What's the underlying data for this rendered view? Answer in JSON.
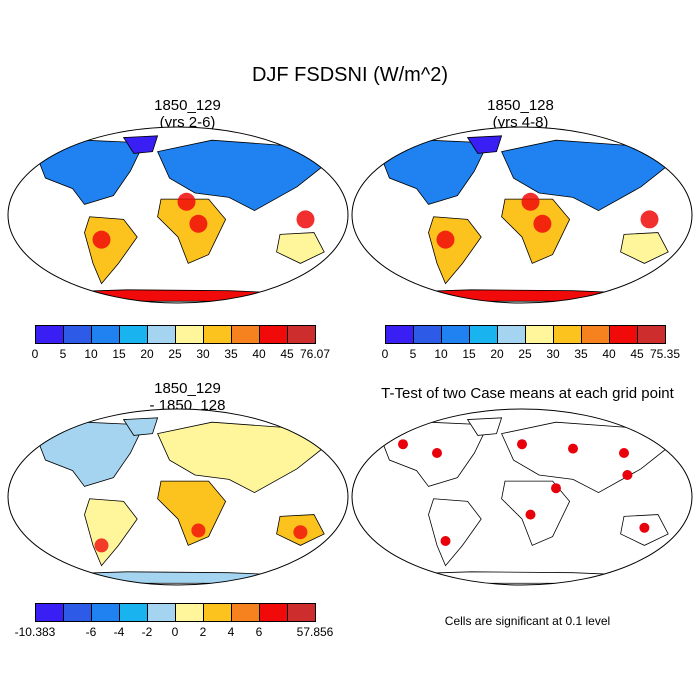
{
  "figure": {
    "title": "DJF FSDSNI (W/m^2)"
  },
  "panels": [
    {
      "id": "case1",
      "title_line1": "1850_129",
      "title_line2": "(yrs 2-6)"
    },
    {
      "id": "case2",
      "title_line1": "1850_128",
      "title_line2": "(yrs 4-8)"
    },
    {
      "id": "diff",
      "title_line1": "1850_129",
      "title_line2": "- 1850_128"
    },
    {
      "id": "ttest",
      "title_line1": "T-Test of two Case means at each grid point",
      "title_line2": ""
    }
  ],
  "colorbars": {
    "case1": {
      "labels": [
        "0",
        "5",
        "10",
        "15",
        "20",
        "25",
        "30",
        "35",
        "40",
        "45",
        "76.07"
      ],
      "colors": [
        "#3a1ff5",
        "#2d5ae6",
        "#1f82f0",
        "#19b4f0",
        "#a5d4f0",
        "#fff59b",
        "#fcc31e",
        "#f5821e",
        "#f00a0a",
        "#cd2d2d"
      ]
    },
    "case2": {
      "labels": [
        "0",
        "5",
        "10",
        "15",
        "20",
        "25",
        "30",
        "35",
        "40",
        "45",
        "75.35"
      ],
      "colors": [
        "#3a1ff5",
        "#2d5ae6",
        "#1f82f0",
        "#19b4f0",
        "#a5d4f0",
        "#fff59b",
        "#fcc31e",
        "#f5821e",
        "#f00a0a",
        "#cd2d2d"
      ]
    },
    "diff": {
      "labels": [
        "-10.383",
        "-6",
        "-4",
        "-2",
        "0",
        "2",
        "4",
        "6",
        "57.856"
      ],
      "label_slots": [
        0,
        2,
        3,
        4,
        5,
        6,
        7,
        8,
        10
      ],
      "colors": [
        "#3a1ff5",
        "#2d5ae6",
        "#1f82f0",
        "#19b4f0",
        "#a5d4f0",
        "#fff59b",
        "#fcc31e",
        "#f5821e",
        "#f00a0a",
        "#cd2d2d"
      ]
    }
  },
  "ttest_note": "Cells are significant at 0.1 level",
  "map_colors": {
    "ocean": "#ffffff",
    "coast": "#000000",
    "significant": "#e8000b"
  }
}
